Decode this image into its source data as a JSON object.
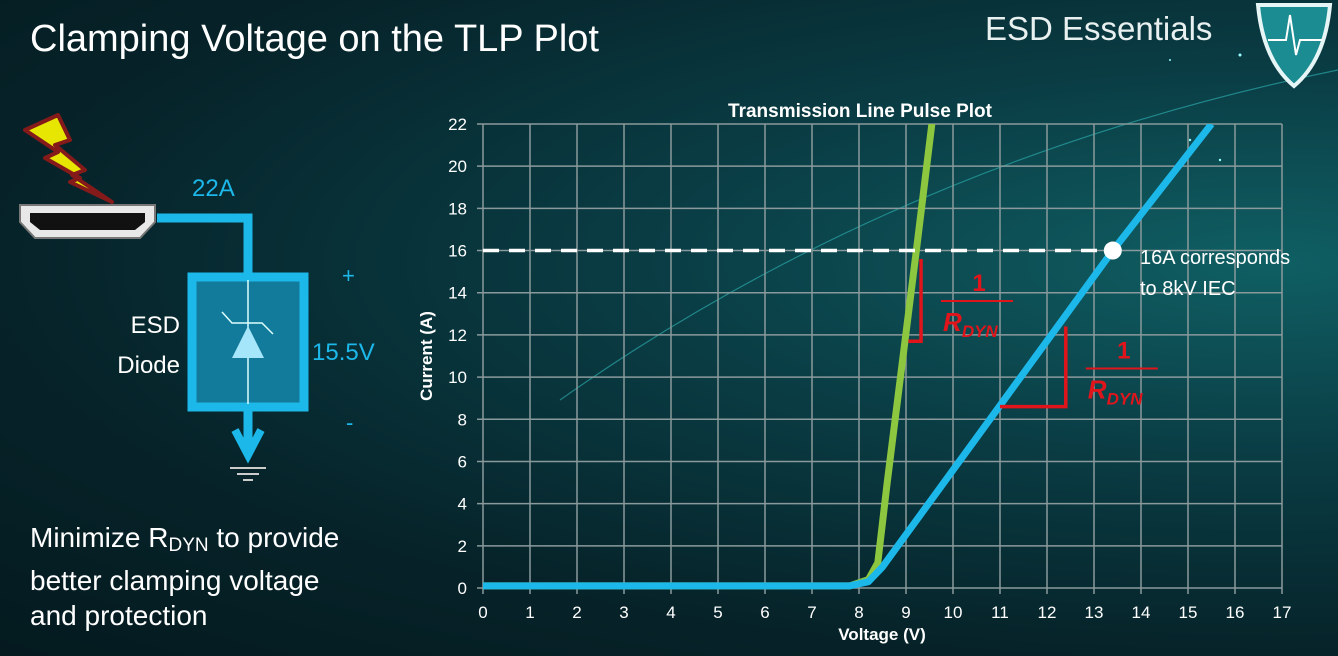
{
  "slide": {
    "title": "Clamping Voltage on the TLP Plot",
    "brand": "ESD Essentials",
    "bottom_text": {
      "line1_prefix": "Minimize R",
      "line1_sub": "DYN",
      "line1_suffix": " to provide",
      "line2": "better clamping voltage",
      "line3": "and protection"
    }
  },
  "circuit": {
    "current_label": "22A",
    "device_label_1": "ESD",
    "device_label_2": "Diode",
    "voltage_label": "15.5V",
    "plus": "+",
    "minus": "-",
    "icons": [
      "lightning-icon",
      "hdmi-connector-icon",
      "tvs-diode-icon",
      "ground-icon",
      "shield-logo-icon"
    ]
  },
  "colors": {
    "wire": "#1cb8ea",
    "green_curve": "#8dc63f",
    "blue_curve": "#1cb8ea",
    "annotation": "#e0151c",
    "grid": "#8a9a9c"
  },
  "chart_data": {
    "type": "line",
    "title": "Transmission Line Pulse Plot",
    "xlabel": "Voltage (V)",
    "ylabel": "Current (A)",
    "xlim": [
      0,
      17
    ],
    "ylim": [
      0,
      22
    ],
    "xticks": [
      "0",
      "1",
      "2",
      "3",
      "4",
      "5",
      "6",
      "7",
      "8",
      "9",
      "10",
      "11",
      "12",
      "13",
      "14",
      "15",
      "16",
      "17"
    ],
    "yticks": [
      "0",
      "2",
      "4",
      "6",
      "8",
      "10",
      "12",
      "14",
      "16",
      "18",
      "20",
      "22"
    ],
    "grid": true,
    "series": [
      {
        "color": "#8dc63f",
        "x": [
          0,
          7.8,
          8.2,
          8.4,
          8.6,
          9.22,
          9.55
        ],
        "y": [
          0.1,
          0.1,
          0.4,
          1.2,
          5,
          16,
          22
        ]
      },
      {
        "color": "#1cb8ea",
        "x": [
          0,
          7.8,
          8.2,
          8.5,
          13.4,
          15.5
        ],
        "y": [
          0.1,
          0.1,
          0.3,
          1,
          16,
          22
        ]
      }
    ],
    "reference_line": {
      "y": 16,
      "x_end": 13.4,
      "style": "dashed"
    },
    "marker": {
      "x": 13.4,
      "y": 16
    },
    "annotation_line1": "16A corresponds",
    "annotation_line2": "to 8kV IEC",
    "slope_label_numerator": "1",
    "slope_label_denominator": "R",
    "slope_label_sub": "DYN",
    "slope_triangles": [
      {
        "x0": 9.05,
        "x1": 9.32,
        "y0": 11.7,
        "y1": 15.6
      },
      {
        "x0": 11.0,
        "x1": 12.4,
        "y0": 8.6,
        "y1": 12.4
      }
    ]
  }
}
